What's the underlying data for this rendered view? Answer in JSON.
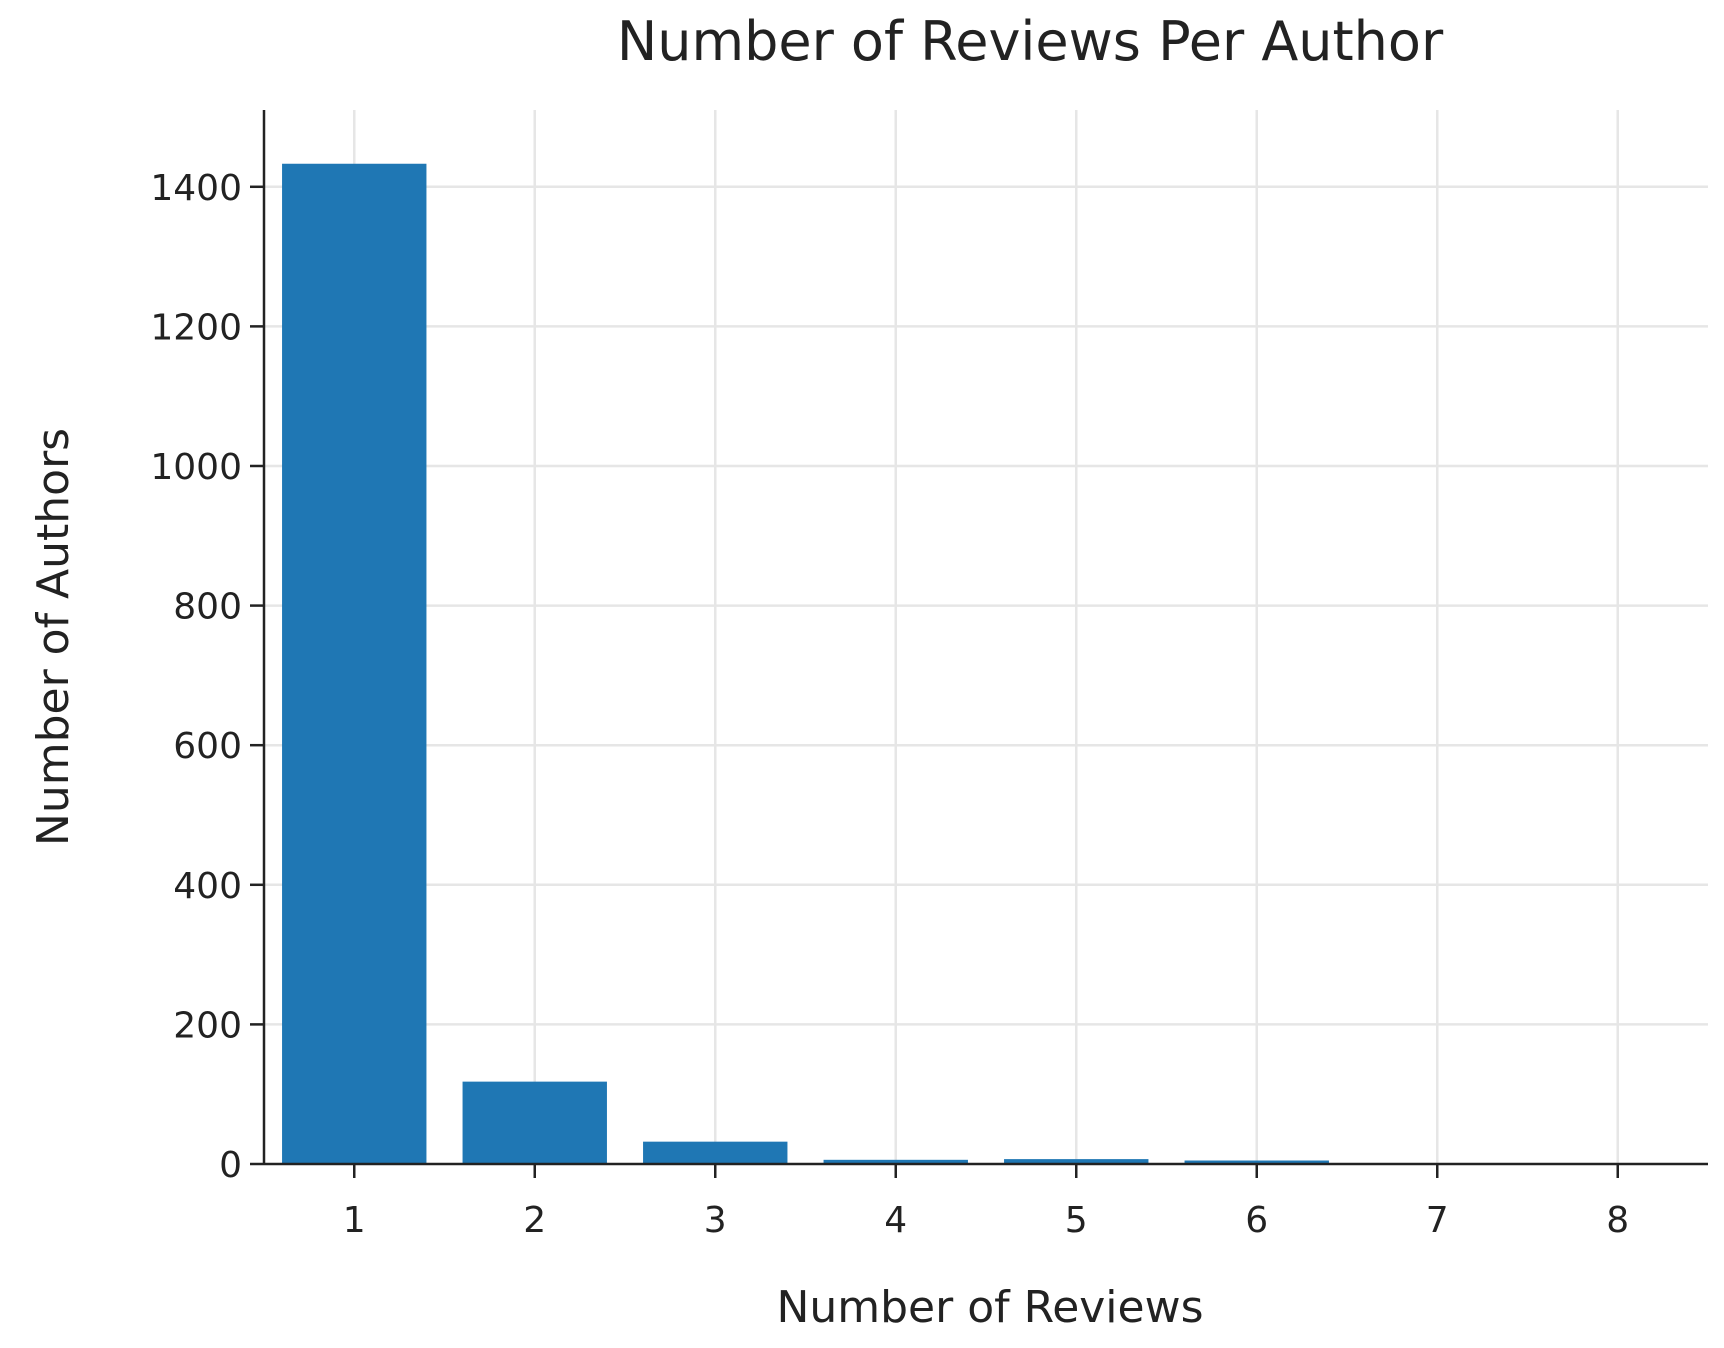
{
  "chart_data": {
    "type": "bar",
    "title": "Number of Reviews Per Author",
    "xlabel": "Number of Reviews",
    "ylabel": "Number of Authors",
    "categories": [
      "1",
      "2",
      "3",
      "4",
      "5",
      "6",
      "7",
      "8"
    ],
    "x": [
      1,
      2,
      3,
      4,
      5,
      6,
      7,
      8
    ],
    "values": [
      1433,
      118,
      32,
      6,
      7,
      5,
      1,
      1
    ],
    "xlim": [
      0.5,
      8.5
    ],
    "ylim": [
      0,
      1510
    ],
    "yticks": [
      0,
      200,
      400,
      600,
      800,
      1000,
      1200,
      1400
    ],
    "xticks": [
      1,
      2,
      3,
      4,
      5,
      6,
      7,
      8
    ],
    "grid": true,
    "legend": "none",
    "bar_color": "#1f77b4"
  }
}
